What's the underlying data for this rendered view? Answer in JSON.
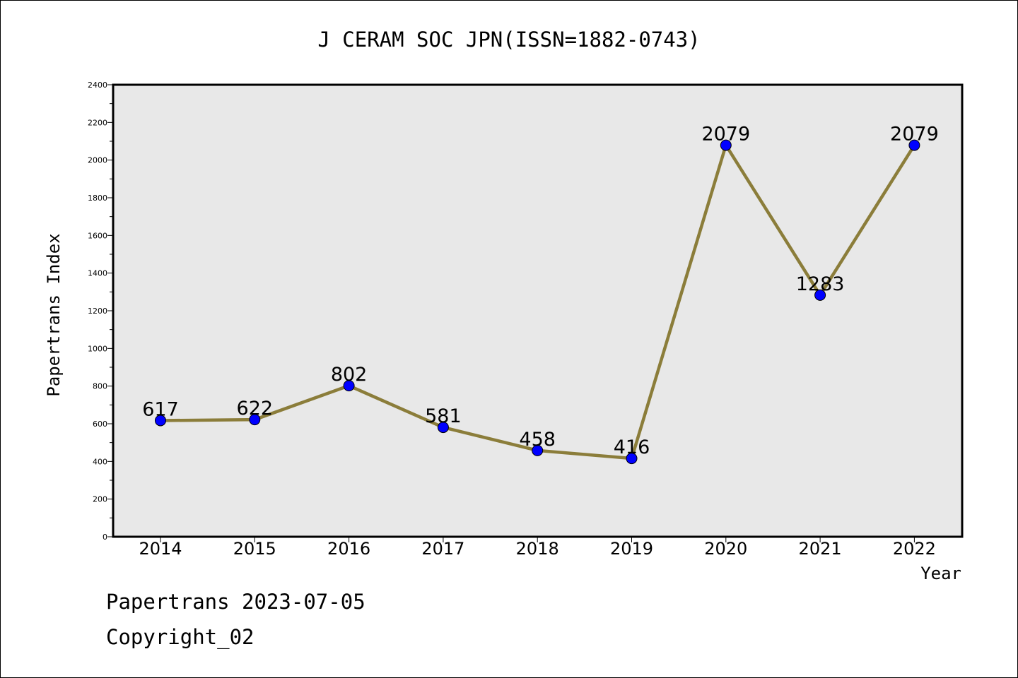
{
  "chart_data": {
    "type": "line",
    "title": "J CERAM SOC JPN(ISSN=1882-0743)",
    "xlabel": "Year",
    "ylabel": "Papertrans Index",
    "categories": [
      "2014",
      "2015",
      "2016",
      "2017",
      "2018",
      "2019",
      "2020",
      "2021",
      "2022"
    ],
    "values": [
      617,
      622,
      802,
      581,
      458,
      416,
      2079,
      1283,
      2079
    ],
    "ylim": [
      0,
      2400
    ],
    "yticks": [
      "0",
      "200",
      "400",
      "600",
      "800",
      "1000",
      "1200",
      "1400",
      "1600",
      "1800",
      "2000",
      "2200",
      "2400"
    ],
    "grid": false,
    "plot_background": "#e8e8e8",
    "line_color": "#8b7d3a",
    "marker_color": "#0000ff"
  },
  "footer": {
    "line1": "Papertrans 2023-07-05",
    "line2": "Copyright_02"
  }
}
